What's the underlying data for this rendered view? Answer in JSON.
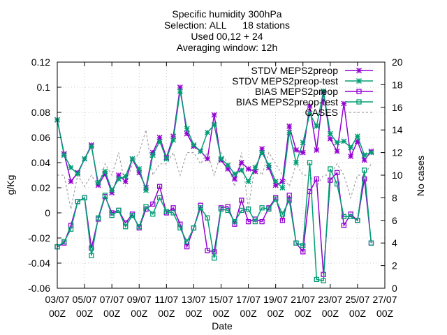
{
  "chart_data": {
    "type": "line",
    "title_lines": [
      "Specific humidity 300hPa",
      "Selection: ALL      18 stations",
      "Used 00,12 + 24",
      "Averaging window: 12h"
    ],
    "xlabel": "Date",
    "ylabel": "g/Kg",
    "y2label": "No cases",
    "x_range": [
      0,
      48
    ],
    "ylim": [
      -0.06,
      0.12
    ],
    "y2lim": [
      0,
      20
    ],
    "y_ticks": [
      "-0.06",
      "-0.04",
      "-0.02",
      "0",
      "0.02",
      "0.04",
      "0.06",
      "0.08",
      "0.1",
      "0.12"
    ],
    "y2_ticks": [
      "0",
      "2",
      "4",
      "6",
      "8",
      "10",
      "12",
      "14",
      "16",
      "18",
      "20"
    ],
    "x_ticks": [
      {
        "x": 0,
        "date": "03/07",
        "hour": "00Z"
      },
      {
        "x": 4,
        "date": "05/07",
        "hour": "00Z"
      },
      {
        "x": 8,
        "date": "07/07",
        "hour": "00Z"
      },
      {
        "x": 12,
        "date": "09/07",
        "hour": "00Z"
      },
      {
        "x": 16,
        "date": "11/07",
        "hour": "00Z"
      },
      {
        "x": 20,
        "date": "13/07",
        "hour": "00Z"
      },
      {
        "x": 24,
        "date": "15/07",
        "hour": "00Z"
      },
      {
        "x": 28,
        "date": "17/07",
        "hour": "00Z"
      },
      {
        "x": 32,
        "date": "19/07",
        "hour": "00Z"
      },
      {
        "x": 36,
        "date": "21/07",
        "hour": "00Z"
      },
      {
        "x": 40,
        "date": "23/07",
        "hour": "00Z"
      },
      {
        "x": 44,
        "date": "25/07",
        "hour": "00Z"
      },
      {
        "x": 48,
        "date": "27/07",
        "hour": "00Z"
      }
    ],
    "legend_position": "top-right",
    "series": [
      {
        "name": "STDV MEPS2preop",
        "axis": "y",
        "color": "#9400d3",
        "dash": "solid",
        "marker": "star",
        "x": [
          0,
          1,
          2,
          3,
          4,
          5,
          6,
          7,
          8,
          9,
          10,
          11,
          12,
          13,
          14,
          15,
          16,
          17,
          18,
          19,
          20,
          21,
          22,
          23,
          24,
          25,
          26,
          27,
          28,
          29,
          30,
          31,
          32,
          33,
          34,
          35,
          36,
          37,
          38,
          39,
          40,
          41,
          42,
          43,
          44,
          45,
          46
        ],
        "values": [
          0.074,
          0.047,
          0.025,
          0.032,
          0.043,
          0.054,
          0.022,
          0.031,
          0.016,
          0.03,
          0.025,
          0.043,
          0.032,
          0.02,
          0.048,
          0.06,
          0.044,
          0.061,
          0.1,
          0.063,
          0.053,
          0.049,
          0.043,
          0.078,
          0.042,
          0.035,
          0.027,
          0.04,
          0.035,
          0.033,
          0.051,
          0.036,
          0.022,
          0.025,
          0.069,
          0.05,
          0.048,
          0.085,
          0.05,
          0.096,
          0.059,
          0.049,
          0.087,
          0.045,
          0.057,
          0.042,
          0.049
        ]
      },
      {
        "name": "STDV MEPS2preop-test",
        "axis": "y",
        "color": "#009e73",
        "dash": "solid",
        "marker": "star",
        "x": [
          0,
          1,
          2,
          3,
          4,
          5,
          6,
          7,
          8,
          9,
          10,
          11,
          12,
          13,
          14,
          15,
          16,
          17,
          18,
          19,
          20,
          21,
          22,
          23,
          24,
          25,
          26,
          27,
          28,
          29,
          30,
          31,
          32,
          33,
          34,
          35,
          36,
          37,
          38,
          39,
          40,
          41,
          42,
          43,
          44,
          45,
          46
        ],
        "values": [
          0.074,
          0.046,
          0.036,
          0.031,
          0.043,
          0.053,
          0.024,
          0.033,
          0.018,
          0.027,
          0.029,
          0.043,
          0.035,
          0.018,
          0.046,
          0.057,
          0.043,
          0.058,
          0.097,
          0.067,
          0.054,
          0.049,
          0.064,
          0.07,
          0.043,
          0.038,
          0.031,
          0.034,
          0.025,
          0.036,
          0.048,
          0.038,
          0.025,
          0.02,
          0.064,
          0.04,
          0.056,
          0.079,
          0.069,
          0.097,
          0.063,
          0.056,
          0.057,
          0.052,
          0.061,
          0.046,
          0.048
        ]
      },
      {
        "name": "BIAS MEPS2preop",
        "axis": "y",
        "color": "#9400d3",
        "dash": "solid",
        "marker": "square",
        "x": [
          0,
          1,
          2,
          3,
          4,
          5,
          6,
          7,
          8,
          9,
          10,
          11,
          12,
          13,
          14,
          15,
          16,
          17,
          18,
          19,
          20,
          21,
          22,
          23,
          24,
          25,
          26,
          27,
          28,
          29,
          30,
          31,
          32,
          33,
          34,
          35,
          36,
          37,
          38,
          39,
          40,
          41,
          42,
          43,
          44,
          45,
          46
        ],
        "values": [
          -0.027,
          -0.024,
          -0.01,
          0.009,
          0.012,
          -0.028,
          -0.005,
          0.013,
          0.0,
          0.002,
          -0.008,
          -0.001,
          -0.012,
          0.003,
          0.007,
          0.021,
          0.0,
          0.004,
          -0.009,
          -0.027,
          -0.012,
          0.006,
          -0.03,
          -0.031,
          0.004,
          0.005,
          -0.009,
          0.01,
          -0.007,
          -0.005,
          -0.007,
          0.004,
          0.012,
          -0.006,
          0.014,
          -0.024,
          -0.031,
          0.017,
          0.027,
          -0.049,
          0.026,
          0.032,
          -0.01,
          -0.001,
          -0.006,
          0.027,
          -0.024
        ]
      },
      {
        "name": "BIAS MEPS2preop-test",
        "axis": "y",
        "color": "#009e73",
        "dash": "solid",
        "marker": "square",
        "x": [
          0,
          1,
          2,
          3,
          4,
          5,
          6,
          7,
          8,
          9,
          10,
          11,
          12,
          13,
          14,
          15,
          16,
          17,
          18,
          19,
          20,
          21,
          22,
          23,
          24,
          25,
          26,
          27,
          28,
          29,
          30,
          31,
          32,
          33,
          34,
          35,
          36,
          37,
          38,
          39,
          40,
          41,
          42,
          43,
          44,
          45,
          46
        ],
        "values": [
          -0.027,
          -0.023,
          -0.013,
          0.009,
          0.012,
          -0.034,
          -0.004,
          0.014,
          -0.002,
          0.002,
          -0.011,
          -0.002,
          -0.011,
          0.005,
          -0.001,
          0.012,
          0.001,
          0.0,
          -0.012,
          -0.023,
          -0.012,
          0.004,
          -0.004,
          -0.036,
          0.003,
          0.002,
          -0.007,
          0.002,
          0.003,
          -0.007,
          0.004,
          0.003,
          0.011,
          -0.001,
          0.01,
          -0.024,
          -0.026,
          0.04,
          -0.053,
          -0.054,
          0.035,
          0.023,
          -0.003,
          -0.003,
          -0.006,
          0.034,
          -0.024
        ]
      },
      {
        "name": "CASES",
        "axis": "y2",
        "color": "#a0a0a0",
        "dash": "dashed",
        "marker": "none",
        "x": [
          0,
          1,
          2,
          3,
          4,
          5,
          6,
          7,
          8,
          9,
          10,
          11,
          12,
          13,
          14,
          15,
          16,
          17,
          18,
          19,
          20,
          21,
          22,
          23,
          24,
          25,
          26,
          27,
          28,
          29,
          30,
          31,
          32,
          33,
          34,
          35,
          36,
          37,
          38,
          39,
          40,
          41,
          42,
          43,
          44,
          45,
          46
        ],
        "values": [
          10,
          10,
          7,
          10,
          9,
          10,
          9,
          11,
          10,
          12,
          9,
          11,
          12,
          14,
          10,
          11,
          11,
          12,
          10,
          12,
          12,
          11,
          12,
          10,
          12,
          11,
          9,
          12,
          7,
          11,
          10,
          12,
          11,
          10,
          9,
          11,
          10,
          10,
          9,
          10,
          10,
          11,
          10,
          8,
          10,
          10,
          11
        ]
      }
    ]
  }
}
